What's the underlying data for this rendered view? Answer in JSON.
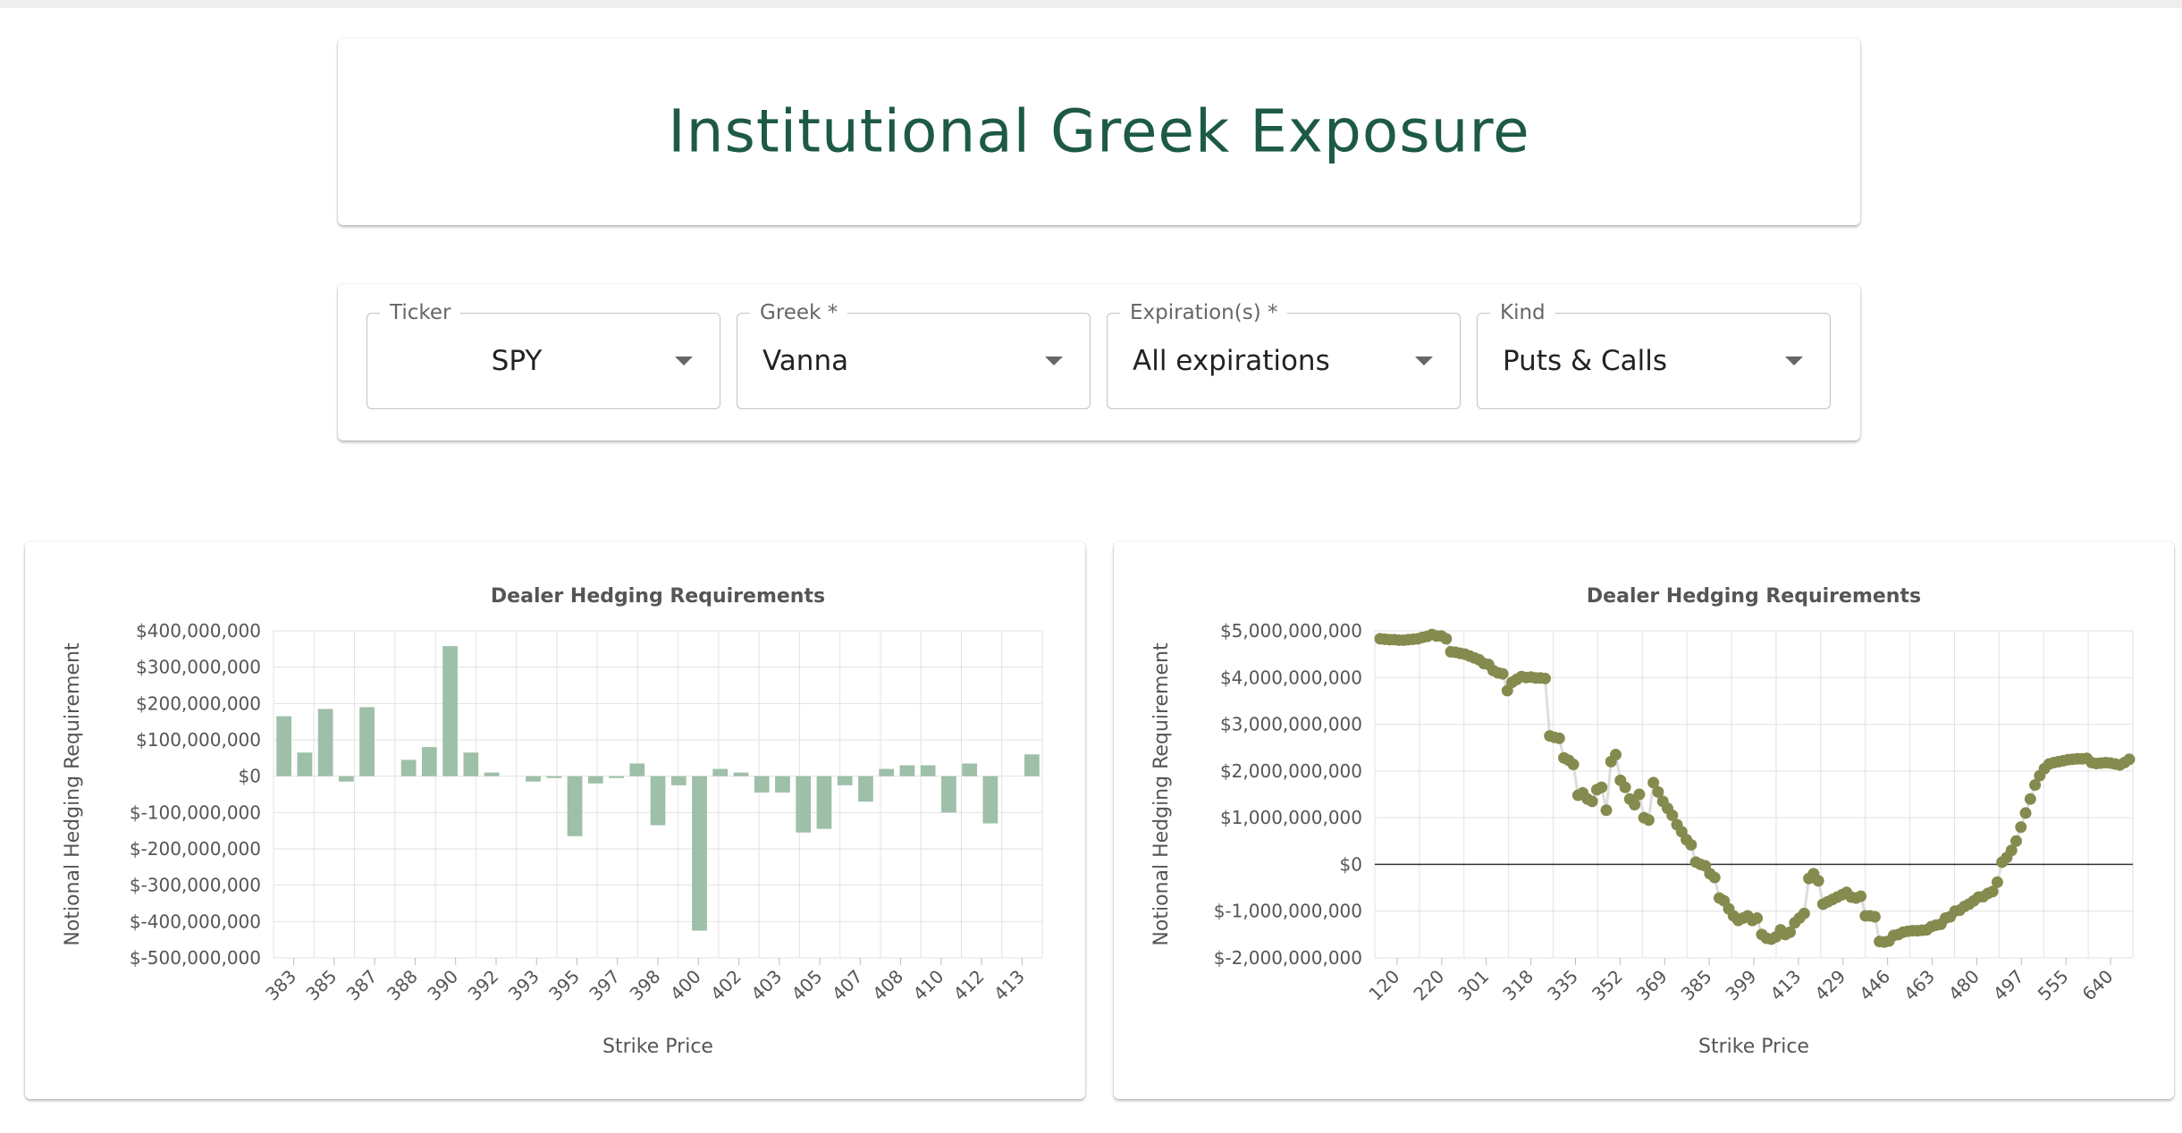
{
  "header": {
    "title": "Institutional Greek Exposure"
  },
  "controls": [
    {
      "label": "Ticker",
      "value": "SPY",
      "icon": "chevron-down-icon"
    },
    {
      "label": "Greek *",
      "value": "Vanna",
      "icon": "chevron-down-icon"
    },
    {
      "label": "Expiration(s) *",
      "value": "All expirations",
      "icon": "chevron-down-icon"
    },
    {
      "label": "Kind",
      "value": "Puts & Calls",
      "icon": "chevron-down-icon"
    }
  ],
  "chart_data": [
    {
      "type": "bar",
      "title": "Dealer Hedging Requirements",
      "xlabel": "Strike Price",
      "ylabel": "Notional Hedging Requirement",
      "ylim": [
        -500000000,
        400000000
      ],
      "yticks": [
        400000000,
        300000000,
        200000000,
        100000000,
        0,
        -100000000,
        -200000000,
        -300000000,
        -400000000,
        -500000000
      ],
      "ytick_labels": [
        "$400,000,000",
        "$300,000,000",
        "$200,000,000",
        "$100,000,000",
        "$0",
        "$-100,000,000",
        "$-200,000,000",
        "$-300,000,000",
        "$-400,000,000",
        "$-500,000,000"
      ],
      "xtick_labels": [
        "383",
        "385",
        "387",
        "388",
        "390",
        "392",
        "393",
        "395",
        "397",
        "398",
        "400",
        "402",
        "403",
        "405",
        "407",
        "408",
        "410",
        "412",
        "413"
      ],
      "grid": true,
      "color": "#9ebfa8",
      "values": [
        165000000,
        65000000,
        185000000,
        -15000000,
        190000000,
        0,
        45000000,
        80000000,
        358000000,
        65000000,
        10000000,
        0,
        -15000000,
        -5000000,
        -165000000,
        -20000000,
        -5000000,
        35000000,
        -135000000,
        -25000000,
        -425000000,
        20000000,
        10000000,
        -45000000,
        -45000000,
        -155000000,
        -145000000,
        -25000000,
        -70000000,
        20000000,
        30000000,
        30000000,
        -100000000,
        35000000,
        -130000000,
        0,
        60000000
      ]
    },
    {
      "type": "scatter",
      "title": "Dealer Hedging Requirements",
      "xlabel": "Strike Price",
      "ylabel": "Notional Hedging Requirement",
      "ylim": [
        -2000000000,
        5000000000
      ],
      "yticks": [
        5000000000,
        4000000000,
        3000000000,
        2000000000,
        1000000000,
        0,
        -1000000000,
        -2000000000
      ],
      "ytick_labels": [
        "$5,000,000,000",
        "$4,000,000,000",
        "$3,000,000,000",
        "$2,000,000,000",
        "$1,000,000,000",
        "$0",
        "$-1,000,000,000",
        "$-2,000,000,000"
      ],
      "xtick_labels": [
        "120",
        "220",
        "301",
        "318",
        "335",
        "352",
        "369",
        "385",
        "399",
        "413",
        "429",
        "446",
        "463",
        "480",
        "497",
        "555",
        "640"
      ],
      "grid": true,
      "zero_line": true,
      "marker_color": "#858a4e",
      "line_color": "#dddddd",
      "values": [
        4830000000,
        4820000000,
        4810000000,
        4810000000,
        4800000000,
        4800000000,
        4810000000,
        4820000000,
        4830000000,
        4860000000,
        4880000000,
        4920000000,
        4890000000,
        4890000000,
        4830000000,
        4550000000,
        4540000000,
        4520000000,
        4500000000,
        4460000000,
        4420000000,
        4380000000,
        4300000000,
        4280000000,
        4150000000,
        4100000000,
        4080000000,
        3720000000,
        3900000000,
        3960000000,
        4020000000,
        4000000000,
        4010000000,
        3990000000,
        3990000000,
        3980000000,
        2750000000,
        2720000000,
        2700000000,
        2280000000,
        2230000000,
        2140000000,
        1480000000,
        1530000000,
        1400000000,
        1350000000,
        1600000000,
        1650000000,
        1160000000,
        2200000000,
        2350000000,
        1800000000,
        1650000000,
        1400000000,
        1280000000,
        1500000000,
        1000000000,
        950000000,
        1750000000,
        1550000000,
        1350000000,
        1200000000,
        1050000000,
        850000000,
        700000000,
        530000000,
        420000000,
        50000000,
        0,
        -30000000,
        -200000000,
        -280000000,
        -720000000,
        -780000000,
        -950000000,
        -1100000000,
        -1200000000,
        -1150000000,
        -1100000000,
        -1200000000,
        -1150000000,
        -1500000000,
        -1580000000,
        -1600000000,
        -1550000000,
        -1400000000,
        -1500000000,
        -1450000000,
        -1250000000,
        -1150000000,
        -1050000000,
        -300000000,
        -200000000,
        -350000000,
        -850000000,
        -800000000,
        -750000000,
        -700000000,
        -650000000,
        -600000000,
        -700000000,
        -720000000,
        -680000000,
        -1100000000,
        -1100000000,
        -1120000000,
        -1650000000,
        -1660000000,
        -1640000000,
        -1520000000,
        -1500000000,
        -1450000000,
        -1430000000,
        -1420000000,
        -1420000000,
        -1410000000,
        -1400000000,
        -1330000000,
        -1300000000,
        -1280000000,
        -1150000000,
        -1120000000,
        -1000000000,
        -980000000,
        -900000000,
        -850000000,
        -780000000,
        -700000000,
        -690000000,
        -620000000,
        -580000000,
        -380000000,
        50000000,
        150000000,
        300000000,
        500000000,
        800000000,
        1100000000,
        1400000000,
        1700000000,
        1900000000,
        2050000000,
        2150000000,
        2180000000,
        2200000000,
        2220000000,
        2240000000,
        2250000000,
        2260000000,
        2260000000,
        2270000000,
        2180000000,
        2160000000,
        2170000000,
        2180000000,
        2170000000,
        2150000000,
        2130000000,
        2180000000,
        2250000000
      ]
    }
  ]
}
